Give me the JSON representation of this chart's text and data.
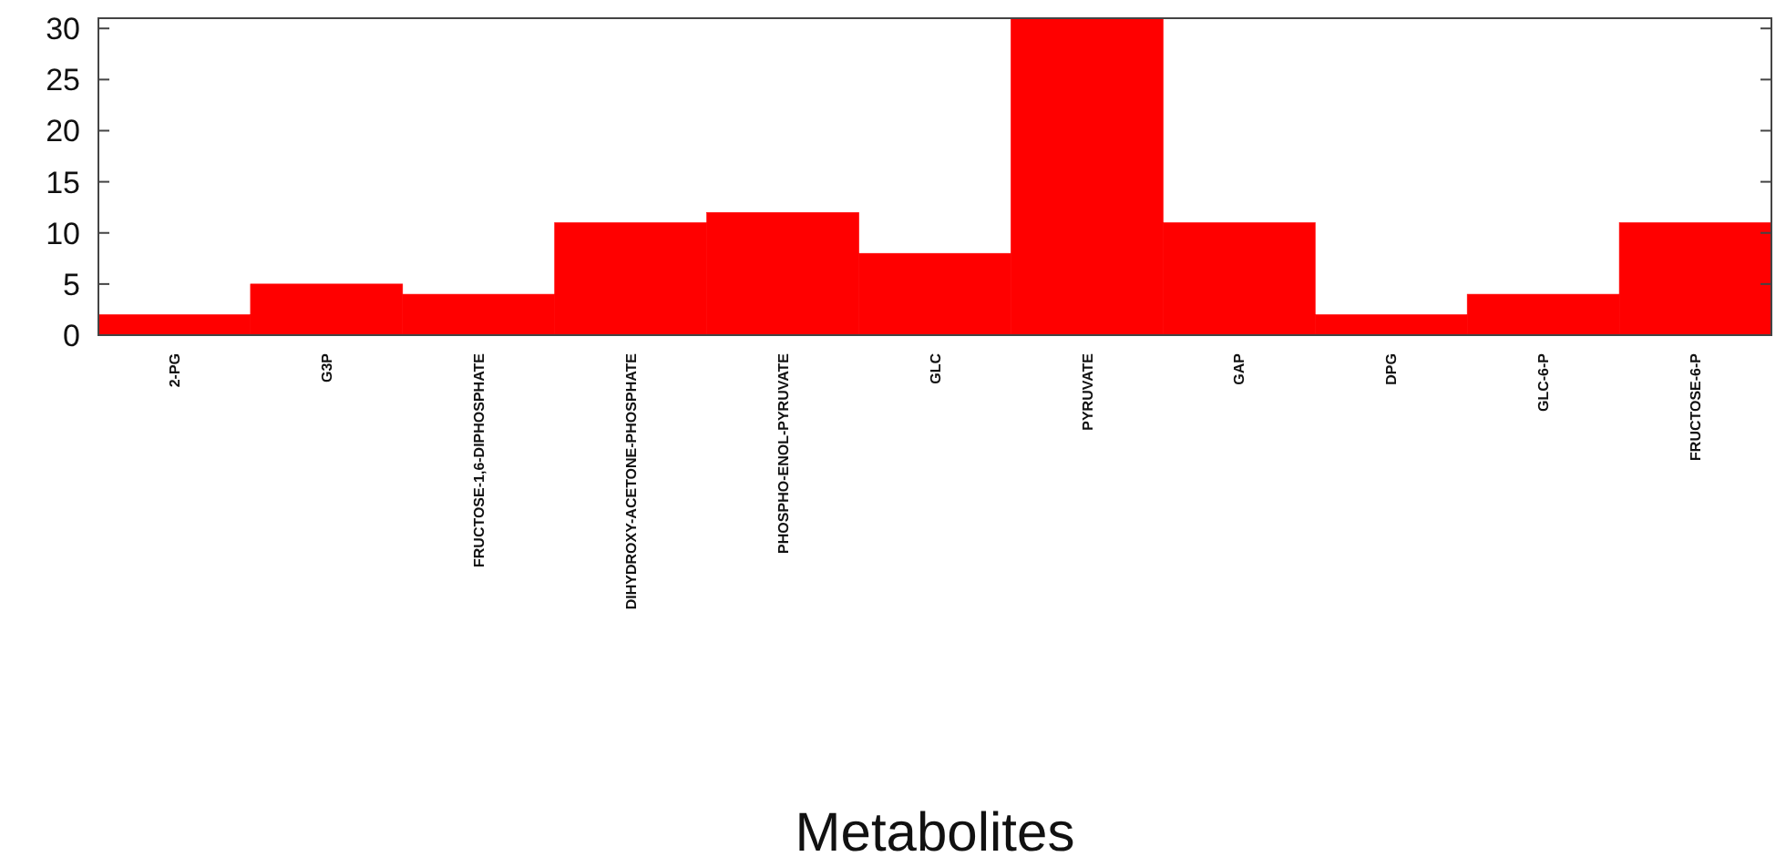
{
  "chart_data": {
    "type": "bar",
    "xlabel": "Metabolites",
    "categories": [
      "2-PG",
      "G3P",
      "FRUCTOSE-1,6-DIPHOSPHATE",
      "DIHYDROXY-ACETONE-PHOSPHATE",
      "PHOSPHO-ENOL-PYRUVATE",
      "GLC",
      "PYRUVATE",
      "GAP",
      "DPG",
      "GLC-6-P",
      "FRUCTOSE-6-P"
    ],
    "values": [
      2,
      5,
      4,
      11,
      12,
      8,
      31,
      11,
      2,
      4,
      11
    ],
    "color": "#ff0000",
    "ylim": [
      0,
      31
    ],
    "yticks": [
      0,
      5,
      10,
      15,
      20,
      25,
      30
    ]
  }
}
